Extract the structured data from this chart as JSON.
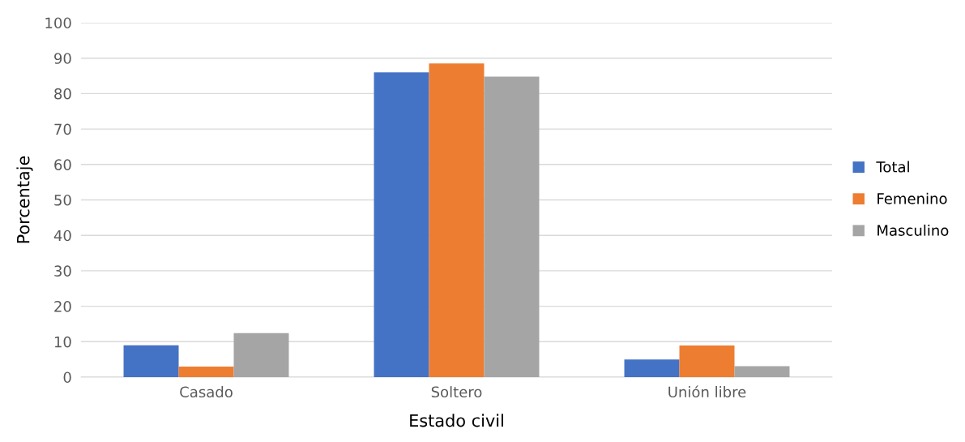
{
  "chart_data": {
    "type": "bar",
    "xlabel": "Estado civil",
    "ylabel": "Porcentaje",
    "categories": [
      "Casado",
      "Soltero",
      "Unión libre"
    ],
    "series": [
      {
        "name": "Total",
        "color": "#4472c4",
        "values": [
          9.0,
          86.0,
          5.0
        ]
      },
      {
        "name": "Femenino",
        "color": "#ed7d31",
        "values": [
          3.0,
          88.5,
          8.9
        ]
      },
      {
        "name": "Masculino",
        "color": "#a5a5a5",
        "values": [
          12.4,
          84.8,
          3.1
        ]
      }
    ],
    "ylim": [
      0,
      100
    ],
    "yticks": [
      0,
      10,
      20,
      30,
      40,
      50,
      60,
      70,
      80,
      90,
      100
    ],
    "grid": "y",
    "legend": "right"
  }
}
